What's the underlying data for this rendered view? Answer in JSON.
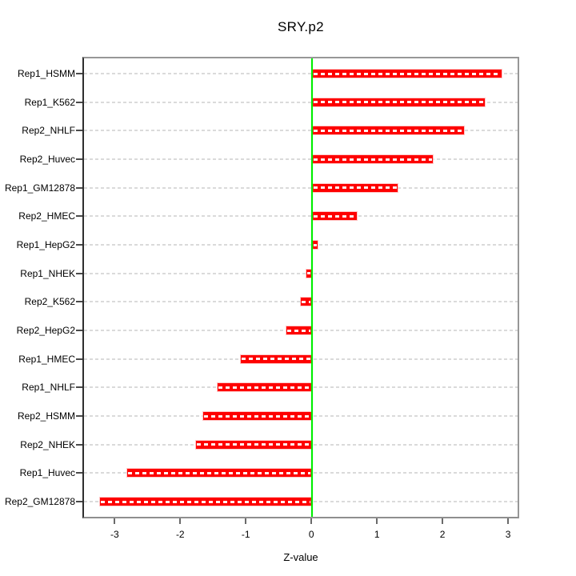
{
  "chart_data": {
    "type": "bar",
    "orientation": "horizontal",
    "title": "SRY.p2",
    "xlabel": "Z-value",
    "ylabel": "",
    "categories": [
      "Rep1_HSMM",
      "Rep1_K562",
      "Rep2_NHLF",
      "Rep2_Huvec",
      "Rep1_GM12878",
      "Rep2_HMEC",
      "Rep1_HepG2",
      "Rep1_NHEK",
      "Rep2_K562",
      "Rep2_HepG2",
      "Rep1_HMEC",
      "Rep1_NHLF",
      "Rep2_HSMM",
      "Rep2_NHEK",
      "Rep1_Huvec",
      "Rep2_GM12878"
    ],
    "values": [
      2.9,
      2.65,
      2.33,
      1.85,
      1.32,
      0.69,
      0.09,
      -0.1,
      -0.18,
      -0.4,
      -1.1,
      -1.45,
      -1.67,
      -1.78,
      -2.83,
      -3.25
    ],
    "xticks": [
      "-3",
      "-2",
      "-1",
      "0",
      "1",
      "2",
      "3"
    ],
    "xtick_values": [
      -3,
      -2,
      -1,
      0,
      1,
      2,
      3
    ],
    "xlim": [
      -3.48,
      3.17
    ],
    "grid": true,
    "legend_position": "none",
    "colors": {
      "bar": "#fe0000",
      "bar_border": "#ffc6c6",
      "bar_dash_overlay": "#ffffff",
      "zero_line": "#00ee00",
      "gridline": "#dadada",
      "panel_border": "#979797",
      "text": "#000000"
    }
  }
}
